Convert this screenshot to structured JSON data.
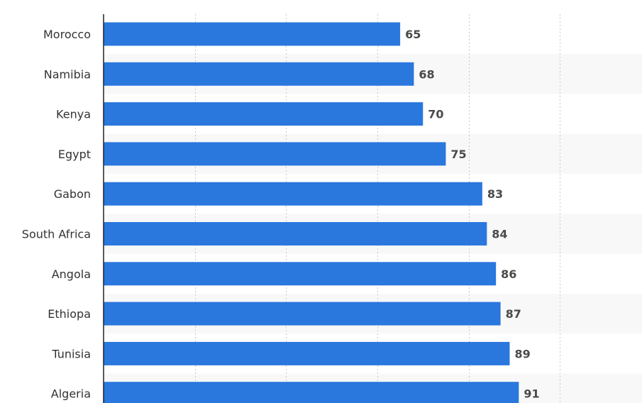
{
  "chart_data": {
    "type": "bar",
    "orientation": "horizontal",
    "categories": [
      "Morocco",
      "Namibia",
      "Kenya",
      "Egypt",
      "Gabon",
      "South Africa",
      "Angola",
      "Ethiopa",
      "Tunisia",
      "Algeria"
    ],
    "values": [
      65,
      68,
      70,
      75,
      83,
      84,
      86,
      87,
      89,
      91
    ],
    "xlim": [
      0,
      118
    ],
    "grid": true,
    "data_labels": true,
    "colors": {
      "bar": "#2a77de"
    }
  }
}
